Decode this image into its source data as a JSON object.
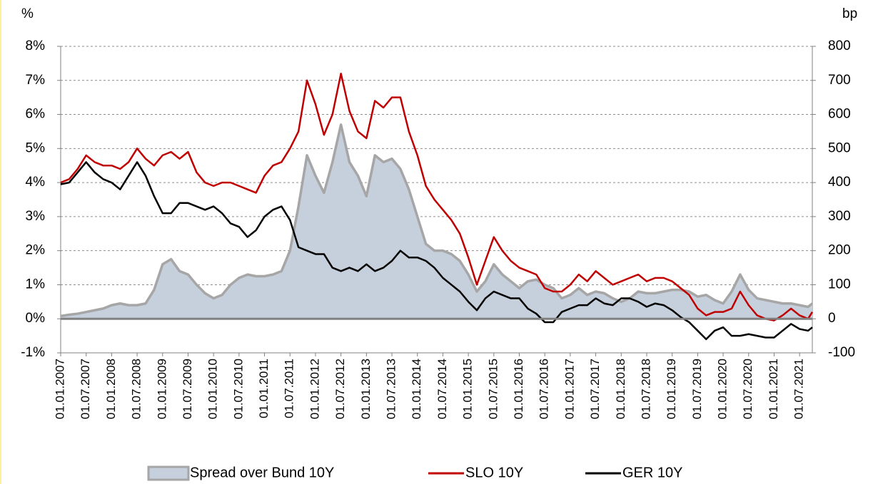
{
  "chart_data": {
    "type": "line",
    "y_label": "%",
    "y2_label": "bp",
    "x": [
      "01.01.2007",
      "01.03.2007",
      "01.05.2007",
      "01.07.2007",
      "01.09.2007",
      "01.11.2007",
      "01.01.2008",
      "01.03.2008",
      "01.05.2008",
      "01.07.2008",
      "01.09.2008",
      "01.11.2008",
      "01.01.2009",
      "01.03.2009",
      "01.05.2009",
      "01.07.2009",
      "01.09.2009",
      "01.11.2009",
      "01.01.2010",
      "01.03.2010",
      "01.05.2010",
      "01.07.2010",
      "01.09.2010",
      "01.11.2010",
      "01.01.2011",
      "01.03.2011",
      "01.05.2011",
      "01.07.2011",
      "01.09.2011",
      "01.11.2011",
      "01.01.2012",
      "01.03.2012",
      "01.05.2012",
      "01.07.2012",
      "01.09.2012",
      "01.11.2012",
      "01.01.2013",
      "01.03.2013",
      "01.05.2013",
      "01.07.2013",
      "01.09.2013",
      "01.11.2013",
      "01.01.2014",
      "01.03.2014",
      "01.05.2014",
      "01.07.2014",
      "01.09.2014",
      "01.11.2014",
      "01.01.2015",
      "01.03.2015",
      "01.05.2015",
      "01.07.2015",
      "01.09.2015",
      "01.11.2015",
      "01.01.2016",
      "01.03.2016",
      "01.05.2016",
      "01.07.2016",
      "01.09.2016",
      "01.11.2016",
      "01.01.2017",
      "01.03.2017",
      "01.05.2017",
      "01.07.2017",
      "01.09.2017",
      "01.11.2017",
      "01.01.2018",
      "01.03.2018",
      "01.05.2018",
      "01.07.2018",
      "01.09.2018",
      "01.11.2018",
      "01.01.2019",
      "01.03.2019",
      "01.05.2019",
      "01.07.2019",
      "01.09.2019",
      "01.11.2019",
      "01.01.2020",
      "01.03.2020",
      "01.05.2020",
      "01.07.2020",
      "01.09.2020",
      "01.11.2020",
      "01.01.2021",
      "01.03.2021",
      "01.05.2021",
      "01.07.2021",
      "01.09.2021",
      "01.10.2021"
    ],
    "xlim": [
      "01.01.2007",
      "01.10.2021"
    ],
    "xticks": [
      "01.01.2007",
      "01.07.2007",
      "01.01.2008",
      "01.07.2008",
      "01.01.2009",
      "01.07.2009",
      "01.01.2010",
      "01.07.2010",
      "01.01.2011",
      "01.07.2011",
      "01.01.2012",
      "01.07.2012",
      "01.01.2013",
      "01.07.2013",
      "01.01.2014",
      "01.07.2014",
      "01.01.2015",
      "01.07.2015",
      "01.01.2016",
      "01.07.2016",
      "01.01.2017",
      "01.07.2017",
      "01.01.2018",
      "01.07.2018",
      "01.01.2019",
      "01.07.2019",
      "01.01.2020",
      "01.07.2020",
      "01.01.2021",
      "01.07.2021"
    ],
    "ylim": [
      -1,
      8
    ],
    "yticks": [
      {
        "value": -1,
        "label": "-1%"
      },
      {
        "value": 0,
        "label": "0%"
      },
      {
        "value": 1,
        "label": "1%"
      },
      {
        "value": 2,
        "label": "2%"
      },
      {
        "value": 3,
        "label": "3%"
      },
      {
        "value": 4,
        "label": "4%"
      },
      {
        "value": 5,
        "label": "5%"
      },
      {
        "value": 6,
        "label": "6%"
      },
      {
        "value": 7,
        "label": "7%"
      },
      {
        "value": 8,
        "label": "8%"
      }
    ],
    "y2lim": [
      -100,
      800
    ],
    "y2ticks": [
      -100,
      0,
      100,
      200,
      300,
      400,
      500,
      600,
      700,
      800
    ],
    "grid": true,
    "legend": "bottom",
    "series": [
      {
        "name": "Spread over Bund 10Y",
        "style": "area",
        "axis": "y2",
        "color": "#c6cfdc",
        "edge_color": "#a6a6a6",
        "values": [
          8,
          12,
          15,
          20,
          25,
          30,
          40,
          45,
          40,
          40,
          45,
          85,
          160,
          175,
          140,
          130,
          100,
          75,
          60,
          70,
          100,
          120,
          130,
          125,
          125,
          130,
          140,
          200,
          330,
          480,
          420,
          370,
          460,
          570,
          460,
          420,
          360,
          480,
          460,
          470,
          440,
          380,
          300,
          220,
          200,
          200,
          190,
          170,
          130,
          80,
          110,
          160,
          130,
          110,
          90,
          110,
          115,
          100,
          90,
          60,
          70,
          90,
          70,
          80,
          75,
          60,
          50,
          60,
          80,
          75,
          75,
          80,
          85,
          85,
          80,
          65,
          70,
          55,
          45,
          80,
          130,
          85,
          60,
          55,
          50,
          45,
          45,
          40,
          35,
          45
        ]
      },
      {
        "name": "SLO 10Y",
        "style": "line",
        "color": "#c00000",
        "values": [
          4.0,
          4.1,
          4.4,
          4.8,
          4.6,
          4.5,
          4.5,
          4.4,
          4.6,
          5.0,
          4.7,
          4.5,
          4.8,
          4.9,
          4.7,
          4.9,
          4.3,
          4.0,
          3.9,
          4.0,
          4.0,
          3.9,
          3.8,
          3.7,
          4.2,
          4.5,
          4.6,
          5.0,
          5.5,
          7.0,
          6.3,
          5.4,
          6.0,
          7.2,
          6.1,
          5.5,
          5.3,
          6.4,
          6.2,
          6.5,
          6.5,
          5.5,
          4.8,
          3.9,
          3.5,
          3.2,
          2.9,
          2.5,
          1.8,
          1.0,
          1.7,
          2.4,
          2.0,
          1.7,
          1.5,
          1.4,
          1.3,
          0.9,
          0.8,
          0.8,
          1.0,
          1.3,
          1.1,
          1.4,
          1.2,
          1.0,
          1.1,
          1.2,
          1.3,
          1.1,
          1.2,
          1.2,
          1.1,
          0.9,
          0.7,
          0.3,
          0.1,
          0.2,
          0.2,
          0.3,
          0.8,
          0.4,
          0.1,
          0.0,
          -0.05,
          0.1,
          0.3,
          0.1,
          0.0,
          0.2
        ]
      },
      {
        "name": "GER 10Y",
        "style": "line",
        "color": "#000000",
        "values": [
          3.95,
          4.0,
          4.3,
          4.6,
          4.3,
          4.1,
          4.0,
          3.8,
          4.2,
          4.6,
          4.2,
          3.6,
          3.1,
          3.1,
          3.4,
          3.4,
          3.3,
          3.2,
          3.3,
          3.1,
          2.8,
          2.7,
          2.4,
          2.6,
          3.0,
          3.2,
          3.3,
          2.9,
          2.1,
          2.0,
          1.9,
          1.9,
          1.5,
          1.4,
          1.5,
          1.4,
          1.6,
          1.4,
          1.5,
          1.7,
          2.0,
          1.8,
          1.8,
          1.7,
          1.5,
          1.2,
          1.0,
          0.8,
          0.5,
          0.25,
          0.6,
          0.8,
          0.7,
          0.6,
          0.6,
          0.3,
          0.15,
          -0.1,
          -0.1,
          0.2,
          0.3,
          0.4,
          0.4,
          0.6,
          0.45,
          0.4,
          0.6,
          0.6,
          0.5,
          0.35,
          0.45,
          0.4,
          0.25,
          0.05,
          -0.1,
          -0.35,
          -0.6,
          -0.35,
          -0.25,
          -0.5,
          -0.5,
          -0.45,
          -0.5,
          -0.55,
          -0.55,
          -0.35,
          -0.15,
          -0.3,
          -0.35,
          -0.25
        ]
      }
    ]
  }
}
